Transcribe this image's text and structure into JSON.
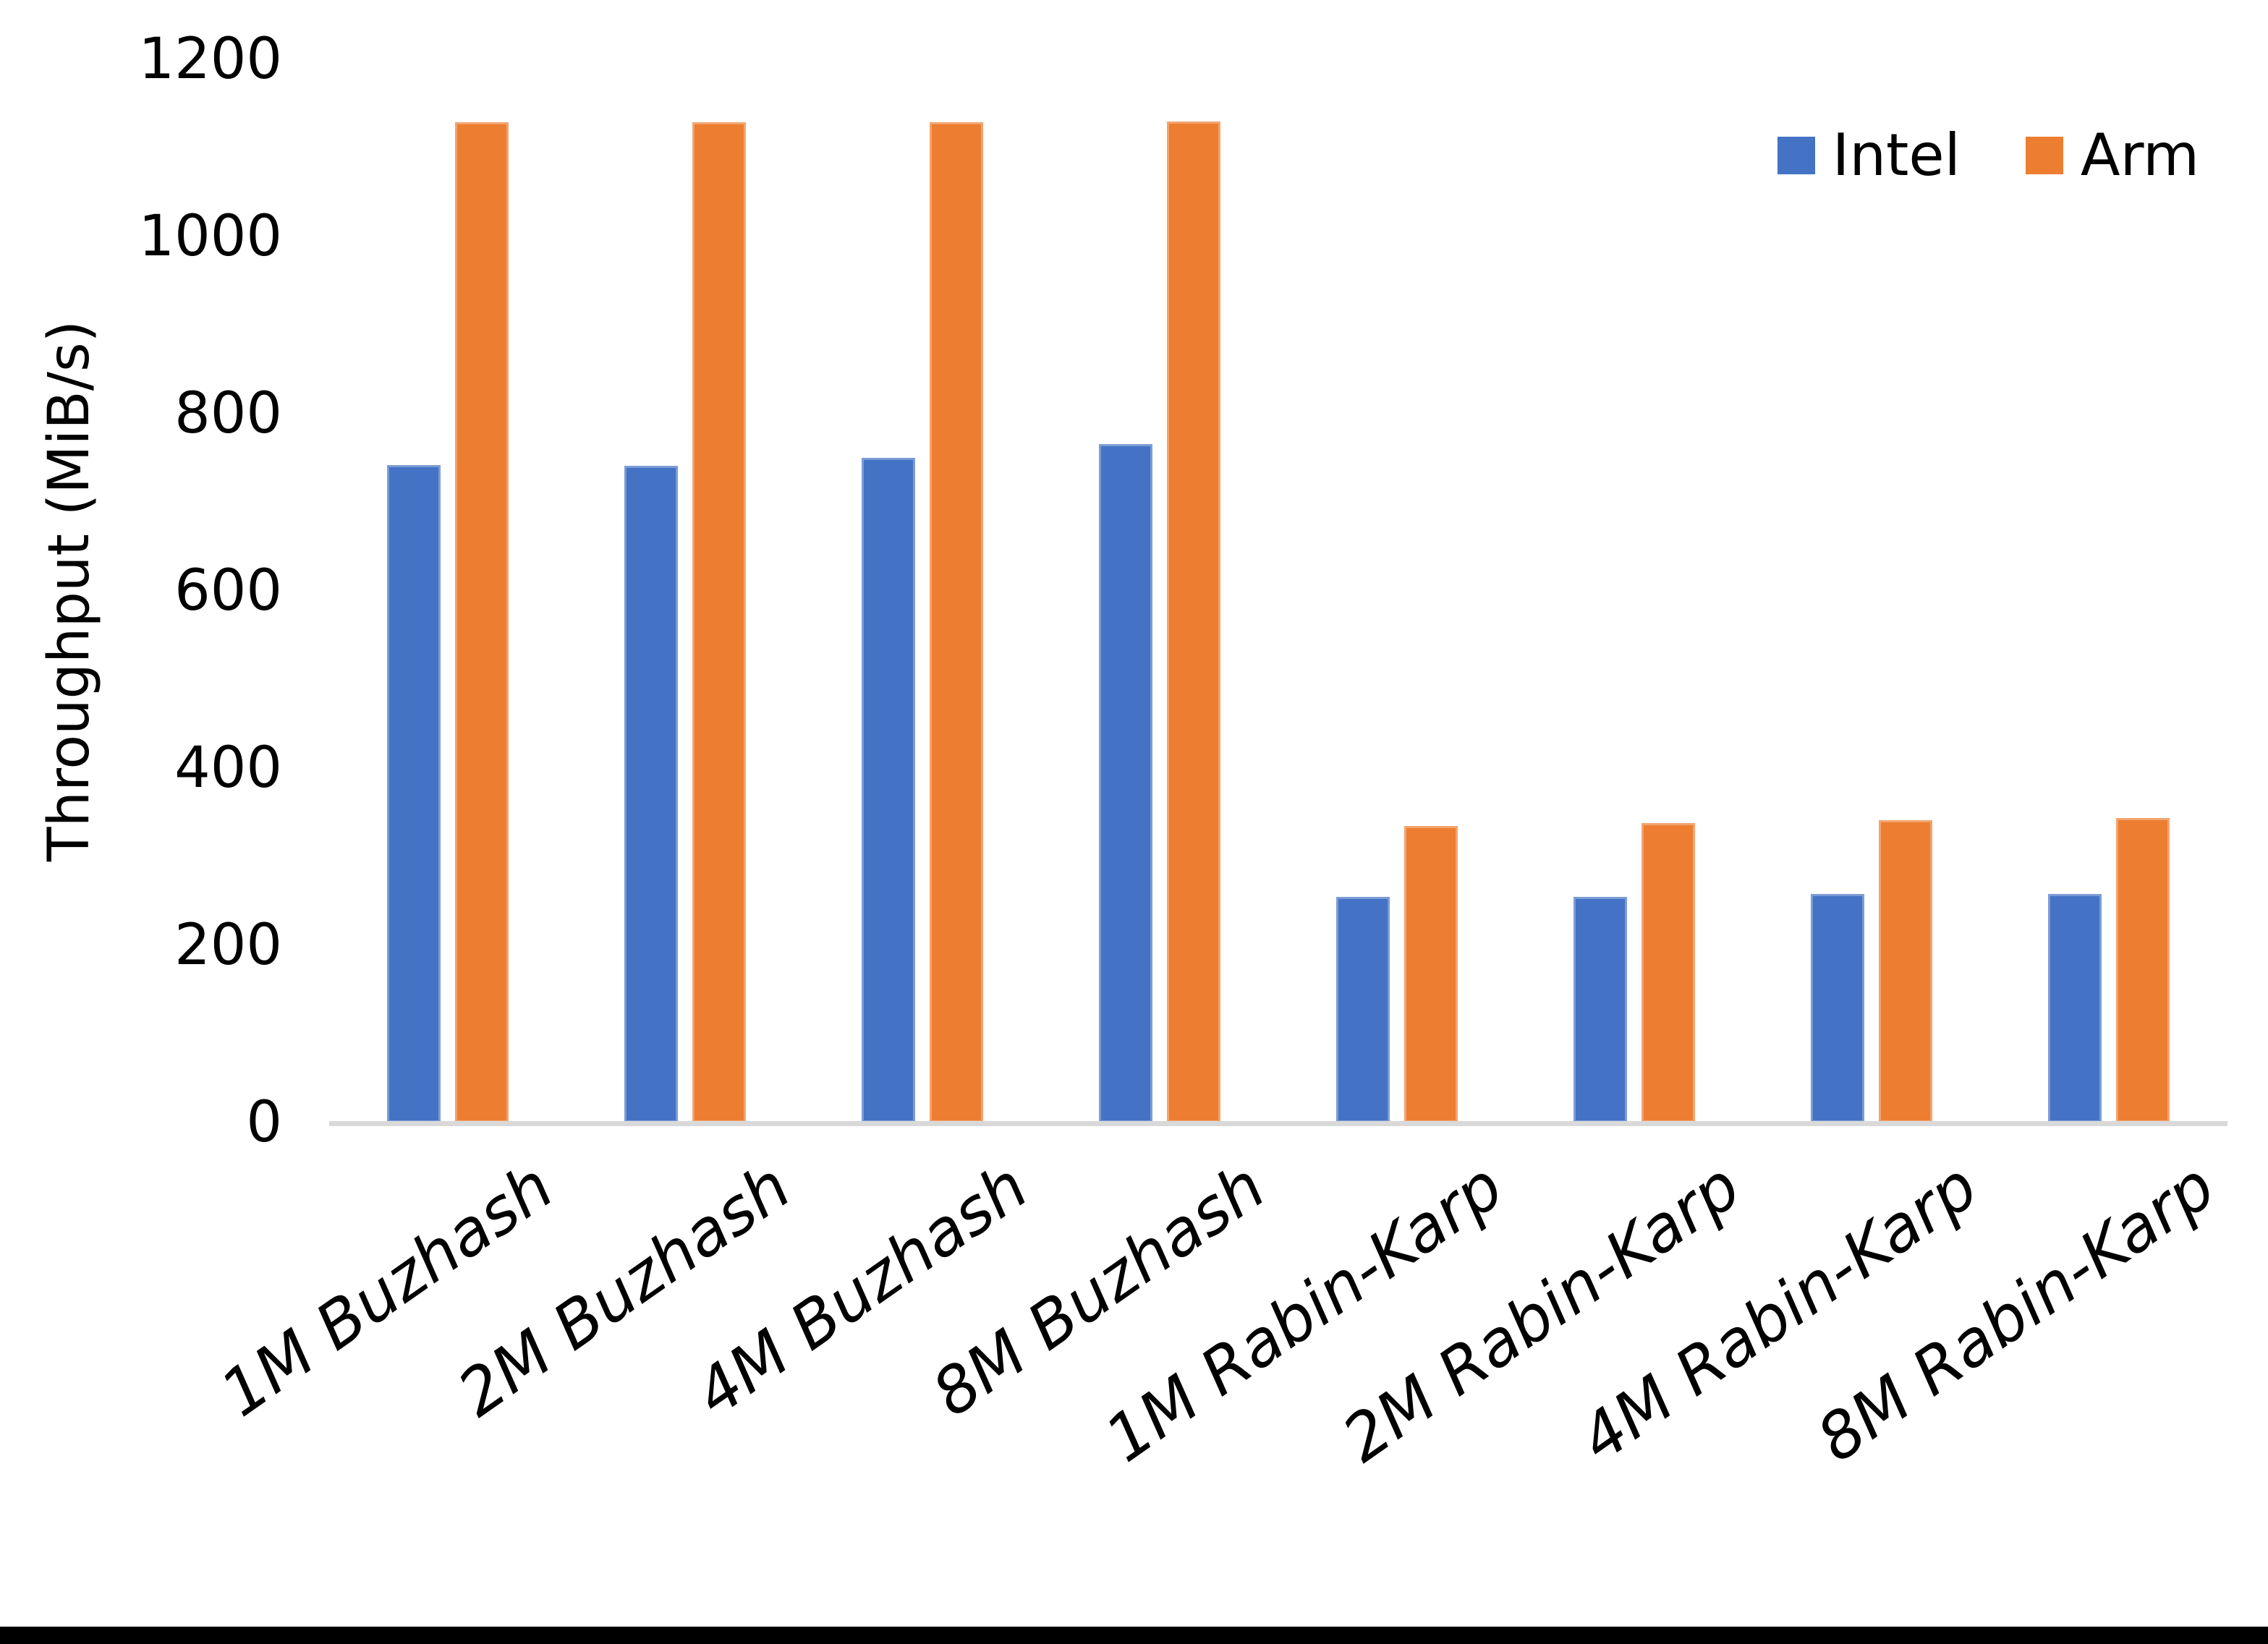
{
  "page": {
    "background": "#FFFFFF",
    "bottom_border_color": "#000000"
  },
  "chart_data": {
    "type": "bar",
    "title": "",
    "xlabel": "",
    "ylabel": "Throughput (MiB/s)",
    "ylim": [
      0,
      1200
    ],
    "yticks": [
      0,
      200,
      400,
      600,
      800,
      1000,
      1200
    ],
    "grid": false,
    "legend_position": "top-right",
    "axis_line_color": "#D9D9D9",
    "text_color": "#000000",
    "categories": [
      "1M Buzhash",
      "2M Buzhash",
      "4M Buzhash",
      "8M Buzhash",
      "1M Rabin-Karp",
      "2M Rabin-Karp",
      "4M Rabin-Karp",
      "8M Rabin-Karp"
    ],
    "series": [
      {
        "name": "Intel",
        "color": "#4472C4",
        "values": [
          742,
          741,
          750,
          766,
          255,
          255,
          258,
          258
        ]
      },
      {
        "name": "Arm",
        "color": "#ED7D31",
        "values": [
          1129,
          1129,
          1129,
          1130,
          335,
          338,
          341,
          344
        ]
      }
    ]
  }
}
